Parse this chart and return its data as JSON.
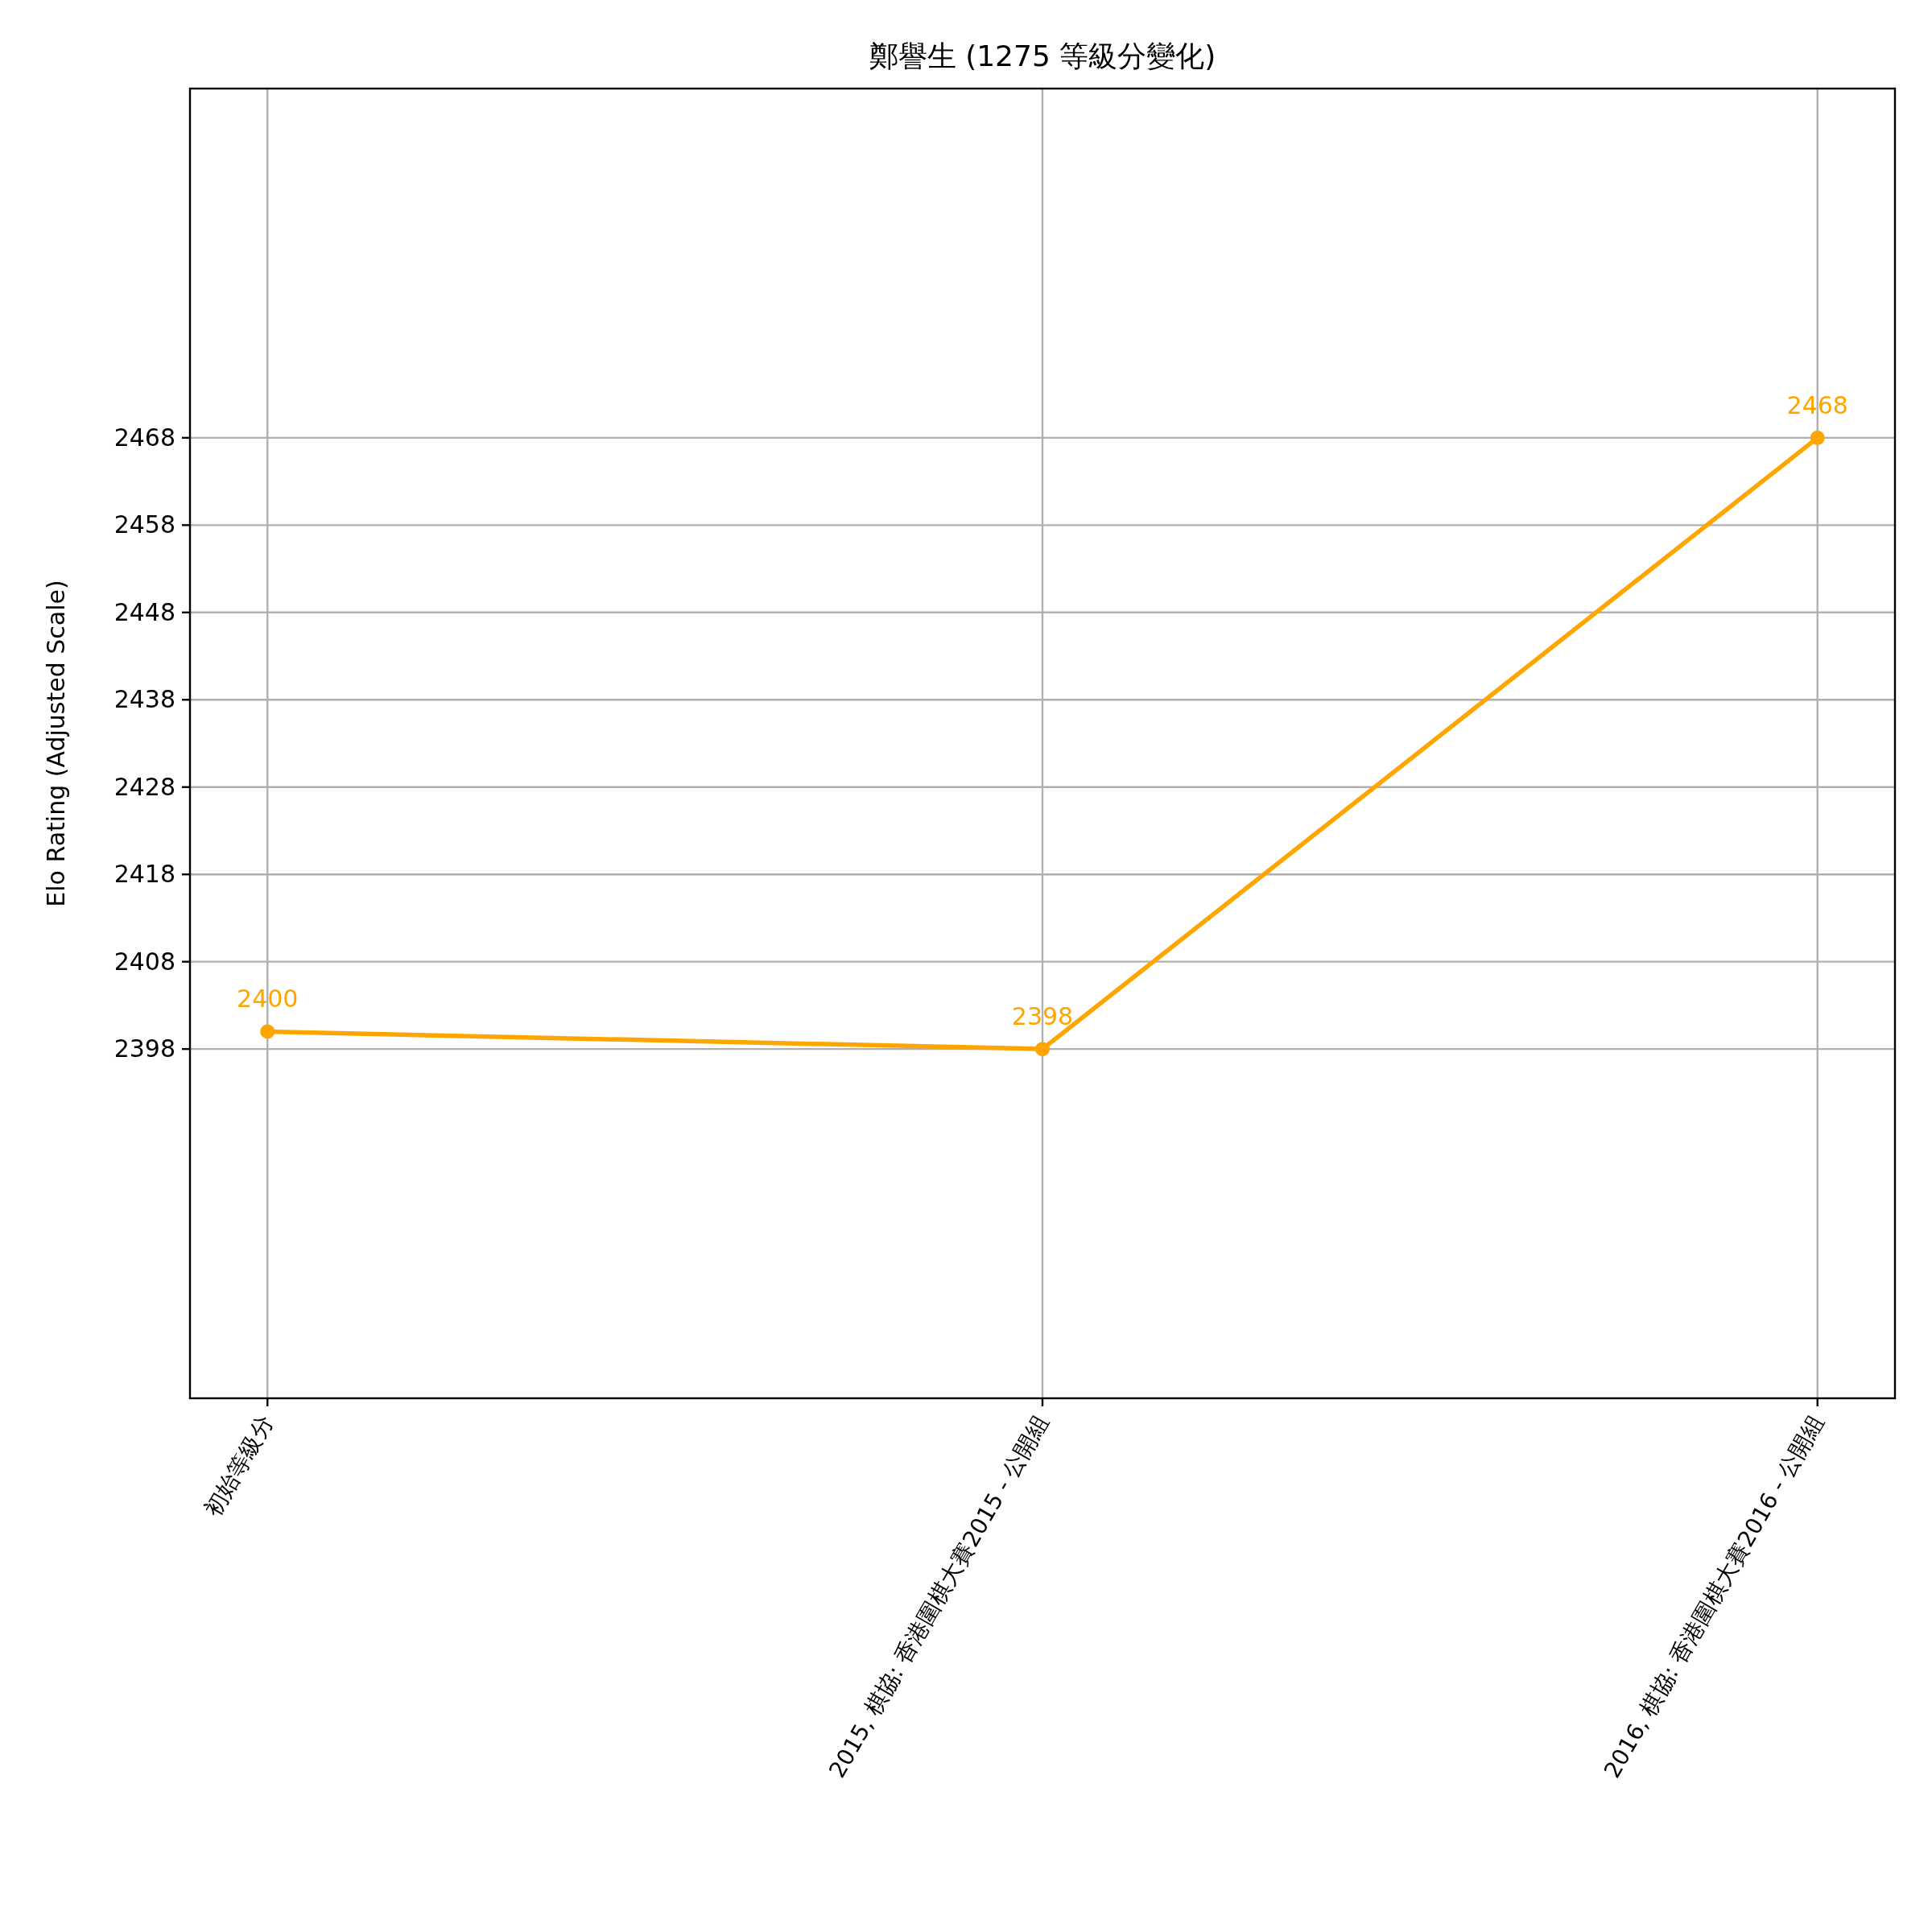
{
  "chart_data": {
    "type": "line",
    "title": "鄭譽生 (1275 等級分變化)",
    "ylabel": "Elo Rating (Adjusted Scale)",
    "categories": [
      "初始等級分",
      "2015, 棋協: 香港圍棋大賽2015 - 公開組",
      "2016, 棋協: 香港圍棋大賽2016 - 公開組"
    ],
    "values": [
      2400,
      2398,
      2468
    ],
    "color": "#ffa500",
    "marker": "circle",
    "line_style": "solid",
    "ylim": [
      2358,
      2508
    ],
    "yticks": [
      2398,
      2408,
      2418,
      2428,
      2438,
      2448,
      2458,
      2468
    ],
    "grid": true,
    "data_labels": true,
    "legend": false
  }
}
